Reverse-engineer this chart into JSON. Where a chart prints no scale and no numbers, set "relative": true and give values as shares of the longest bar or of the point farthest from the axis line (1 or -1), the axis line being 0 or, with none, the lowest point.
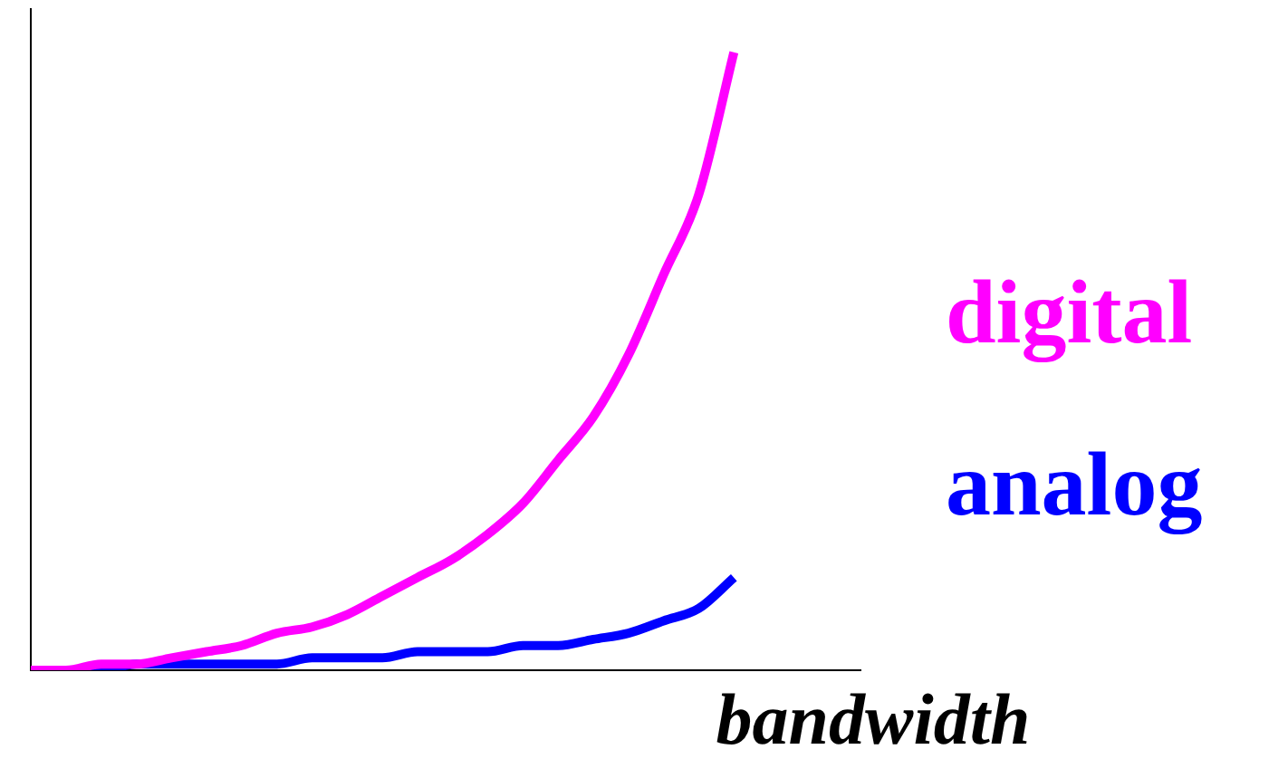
{
  "chart_data": {
    "type": "line",
    "relative": true,
    "xlabel": "bandwidth",
    "legend": "right",
    "marker": "none",
    "line_style": "solid",
    "grid": false,
    "categories": [
      null,
      null,
      null,
      null,
      null,
      null,
      null,
      null,
      null,
      null,
      null,
      null,
      null,
      null,
      null,
      null,
      null,
      null,
      null,
      null,
      null
    ],
    "series": [
      {
        "name": "digital",
        "color": "#ff00ff",
        "values": [
          0,
          0,
          0.01,
          0.01,
          0.02,
          0.03,
          0.04,
          0.06,
          0.07,
          0.09,
          0.12,
          0.15,
          0.18,
          0.22,
          0.27,
          0.34,
          0.41,
          0.51,
          0.64,
          0.77,
          1
        ]
      },
      {
        "name": "analog",
        "color": "#0000ff",
        "values": [
          0,
          0,
          0,
          0.01,
          0.01,
          0.01,
          0.01,
          0.01,
          0.02,
          0.02,
          0.02,
          0.03,
          0.03,
          0.03,
          0.04,
          0.04,
          0.05,
          0.06,
          0.08,
          0.1,
          0.15
        ]
      }
    ]
  }
}
